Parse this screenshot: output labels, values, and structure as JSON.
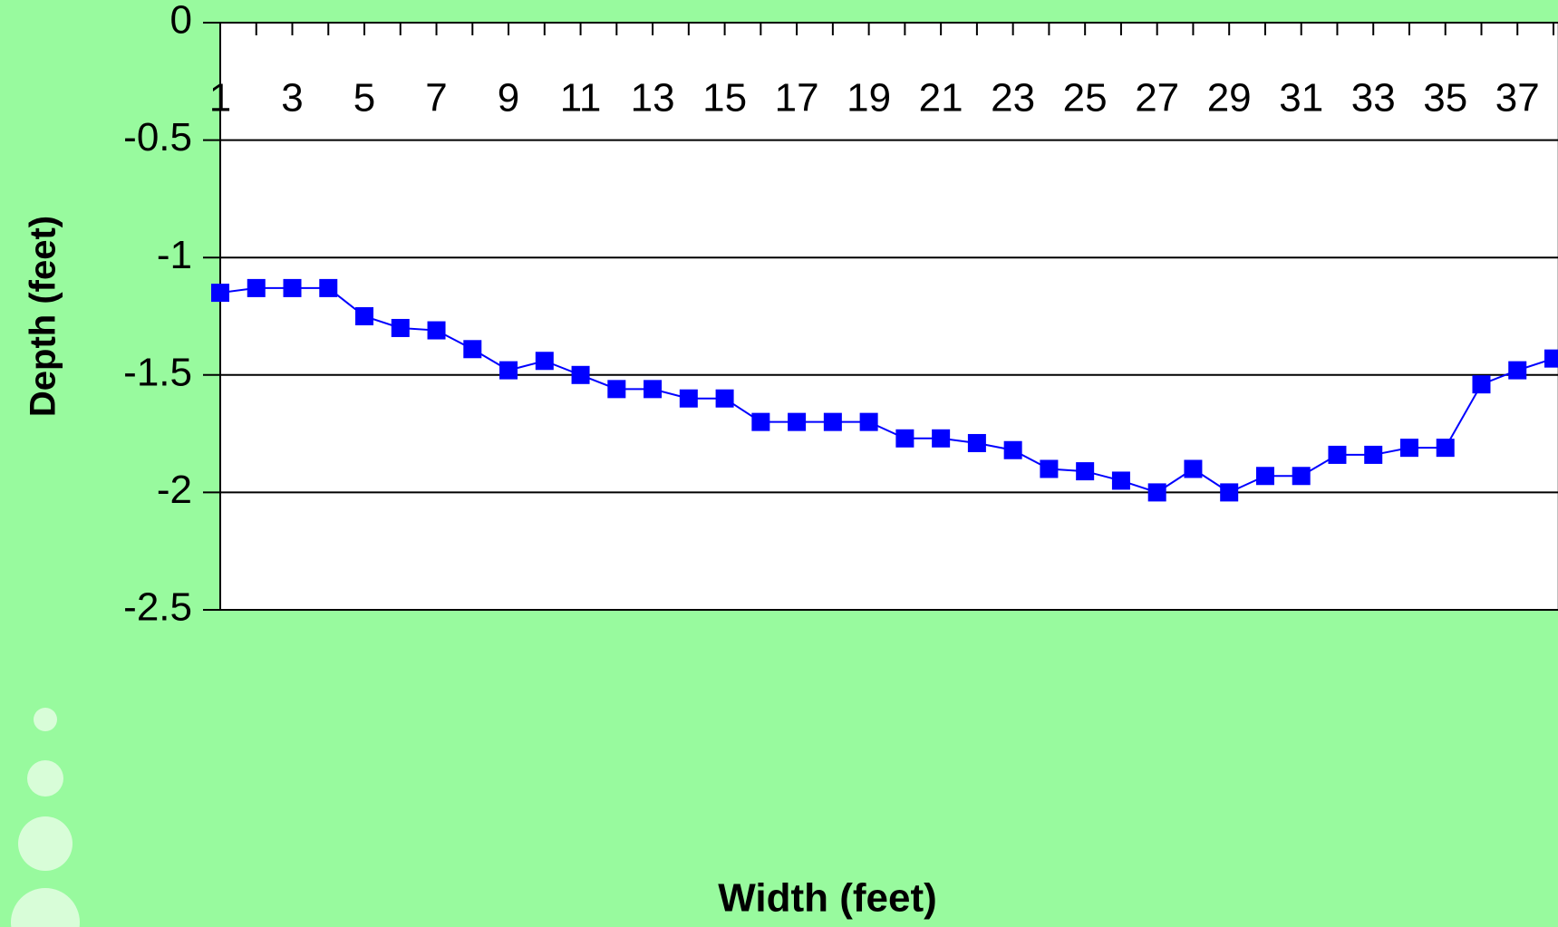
{
  "chart_data": {
    "type": "line",
    "x_label": "Width (feet)",
    "y_label": "Depth (feet)",
    "categories": [
      "1",
      null,
      "3",
      null,
      "5",
      null,
      "7",
      null,
      "9",
      null,
      "11",
      null,
      "13",
      null,
      "15",
      null,
      "17",
      null,
      "19",
      null,
      "21",
      null,
      "23",
      null,
      "25",
      null,
      "27",
      null,
      "29",
      null,
      "31",
      null,
      "33",
      null,
      "35",
      null,
      "37",
      null
    ],
    "series": [
      {
        "color": "#0000ff",
        "values": [
          -1.15,
          -1.13,
          -1.13,
          -1.13,
          -1.25,
          -1.3,
          -1.31,
          -1.39,
          -1.48,
          -1.44,
          -1.5,
          -1.56,
          -1.56,
          -1.6,
          -1.6,
          -1.7,
          -1.7,
          -1.7,
          -1.7,
          -1.77,
          -1.77,
          -1.79,
          -1.82,
          -1.9,
          -1.91,
          -1.95,
          -2.0,
          -1.9,
          -2.0,
          -1.93,
          -1.93,
          -1.84,
          -1.84,
          -1.81,
          -1.81,
          -1.54,
          -1.48,
          -1.43
        ]
      }
    ],
    "ylim": [
      -2.5,
      0
    ],
    "yticks": [
      0,
      -0.5,
      -1,
      -1.5,
      -2,
      -2.5
    ],
    "grid": true
  }
}
